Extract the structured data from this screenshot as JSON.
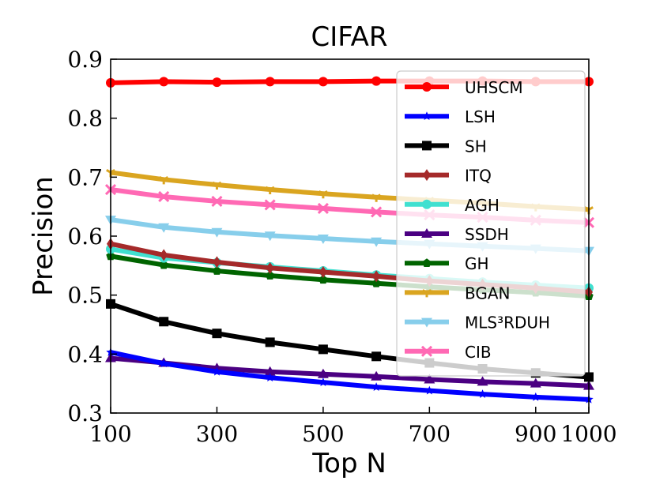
{
  "chart_data": {
    "type": "line",
    "title": "CIFAR",
    "xlabel": "Top N",
    "ylabel": "Precision",
    "xlim": [
      100,
      1000
    ],
    "ylim": [
      0.3,
      0.9
    ],
    "xticks": [
      100,
      300,
      500,
      700,
      900,
      1000
    ],
    "xtick_labels": [
      "100",
      "300",
      "500",
      "700",
      "900",
      "1000"
    ],
    "yticks": [
      0.3,
      0.4,
      0.5,
      0.6,
      0.7,
      0.8,
      0.9
    ],
    "ytick_labels": [
      "0.3",
      "0.4",
      "0.5",
      "0.6",
      "0.7",
      "0.8",
      "0.9"
    ],
    "grid": false,
    "legend_position": "upper-right",
    "x": [
      100,
      200,
      300,
      400,
      500,
      600,
      700,
      800,
      900,
      1000
    ],
    "series": [
      {
        "name": "UHSCM",
        "color": "#ff0000",
        "marker": "circle",
        "values": [
          0.86,
          0.862,
          0.861,
          0.862,
          0.862,
          0.863,
          0.863,
          0.863,
          0.862,
          0.862
        ]
      },
      {
        "name": "LSH",
        "color": "#0000ff",
        "marker": "star",
        "values": [
          0.403,
          0.384,
          0.37,
          0.36,
          0.352,
          0.344,
          0.338,
          0.332,
          0.327,
          0.323
        ]
      },
      {
        "name": "SH",
        "color": "#000000",
        "marker": "square",
        "values": [
          0.485,
          0.455,
          0.435,
          0.42,
          0.408,
          0.396,
          0.385,
          0.375,
          0.368,
          0.361
        ]
      },
      {
        "name": "ITQ",
        "color": "#a52a2a",
        "marker": "diamond",
        "values": [
          0.587,
          0.568,
          0.556,
          0.546,
          0.539,
          0.532,
          0.524,
          0.518,
          0.512,
          0.505
        ]
      },
      {
        "name": "AGH",
        "color": "#40e0d0",
        "marker": "circle",
        "values": [
          0.578,
          0.563,
          0.555,
          0.548,
          0.541,
          0.534,
          0.528,
          0.522,
          0.517,
          0.512
        ]
      },
      {
        "name": "SSDH",
        "color": "#4b0082",
        "marker": "triangle-up",
        "values": [
          0.393,
          0.385,
          0.376,
          0.37,
          0.366,
          0.362,
          0.357,
          0.353,
          0.35,
          0.346
        ]
      },
      {
        "name": "GH",
        "color": "#006400",
        "marker": "pentagon",
        "values": [
          0.566,
          0.551,
          0.541,
          0.533,
          0.526,
          0.52,
          0.514,
          0.509,
          0.504,
          0.498
        ]
      },
      {
        "name": "BGAN",
        "color": "#daa520",
        "marker": "tri",
        "values": [
          0.708,
          0.696,
          0.687,
          0.679,
          0.672,
          0.666,
          0.661,
          0.656,
          0.65,
          0.645
        ]
      },
      {
        "name": "MLS³RDUH",
        "color": "#87ceeb",
        "marker": "triangle-down",
        "values": [
          0.628,
          0.615,
          0.607,
          0.601,
          0.596,
          0.591,
          0.587,
          0.583,
          0.579,
          0.575
        ]
      },
      {
        "name": "CIB",
        "color": "#ff69b4",
        "marker": "x",
        "values": [
          0.679,
          0.667,
          0.659,
          0.653,
          0.647,
          0.641,
          0.636,
          0.632,
          0.627,
          0.623
        ]
      }
    ]
  }
}
